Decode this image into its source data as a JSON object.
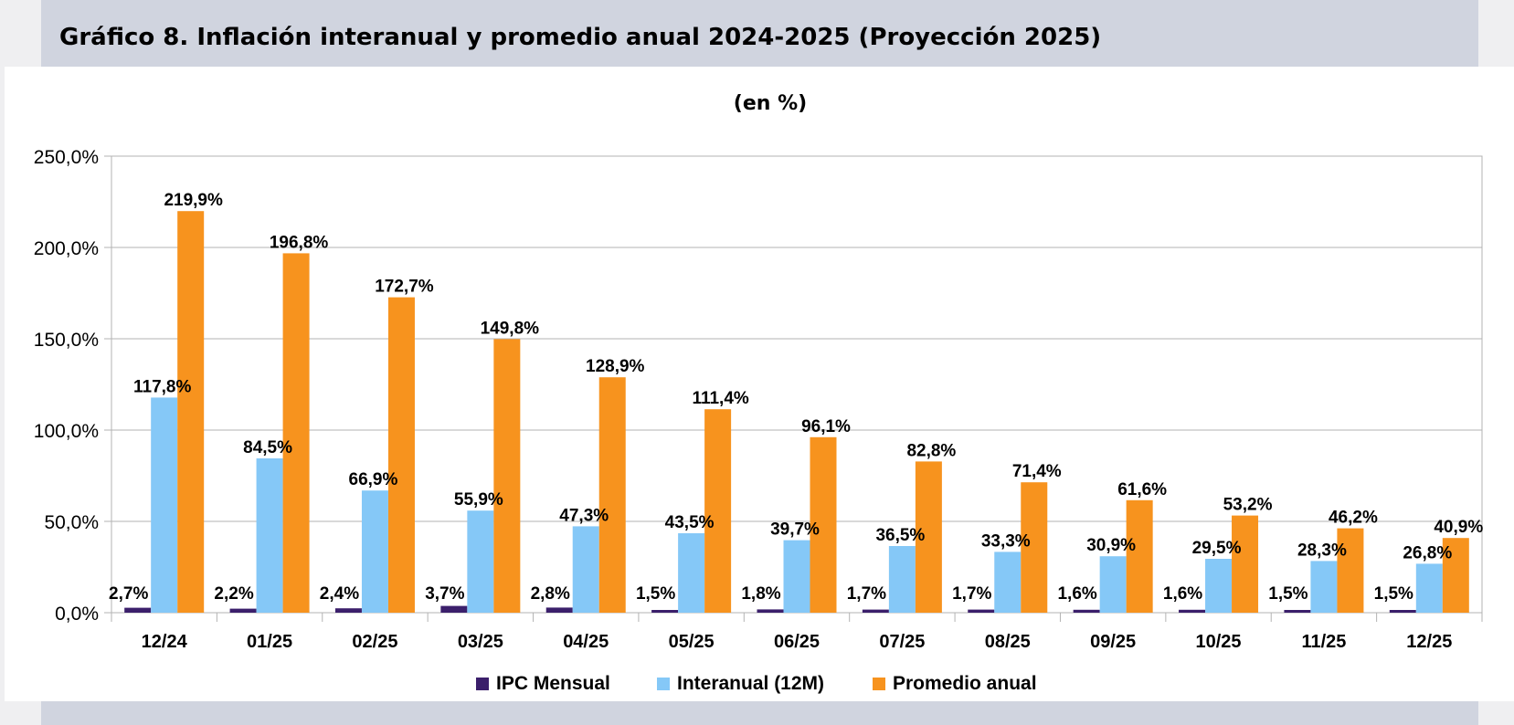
{
  "title": "Gráfico 8. Inflación interanual  y promedio anual 2024-2025 (Proyección 2025)",
  "chart_data": {
    "type": "bar",
    "subtitle": "(en %)",
    "categories": [
      "12/24",
      "01/25",
      "02/25",
      "03/25",
      "04/25",
      "05/25",
      "06/25",
      "07/25",
      "08/25",
      "09/25",
      "10/25",
      "11/25",
      "12/25"
    ],
    "series": [
      {
        "name": "IPC Mensual",
        "color": "#3b1f6b",
        "values": [
          2.7,
          2.2,
          2.4,
          3.7,
          2.8,
          1.5,
          1.8,
          1.7,
          1.7,
          1.6,
          1.6,
          1.5,
          1.5
        ],
        "labels": [
          "2,7%",
          "2,2%",
          "2,4%",
          "3,7%",
          "2,8%",
          "1,5%",
          "1,8%",
          "1,7%",
          "1,7%",
          "1,6%",
          "1,6%",
          "1,5%",
          "1,5%"
        ]
      },
      {
        "name": "Interanual (12M)",
        "color": "#85c8f7",
        "values": [
          117.8,
          84.5,
          66.9,
          55.9,
          47.3,
          43.5,
          39.7,
          36.5,
          33.3,
          30.9,
          29.5,
          28.3,
          26.8
        ],
        "labels": [
          "117,8%",
          "84,5%",
          "66,9%",
          "55,9%",
          "47,3%",
          "43,5%",
          "39,7%",
          "36,5%",
          "33,3%",
          "30,9%",
          "29,5%",
          "28,3%",
          "26,8%"
        ]
      },
      {
        "name": "Promedio anual",
        "color": "#f7931e",
        "values": [
          219.9,
          196.8,
          172.7,
          149.8,
          128.9,
          111.4,
          96.1,
          82.8,
          71.4,
          61.6,
          53.2,
          46.2,
          40.9
        ],
        "labels": [
          "219,9%",
          "196,8%",
          "172,7%",
          "149,8%",
          "128,9%",
          "111,4%",
          "96,1%",
          "82,8%",
          "71,4%",
          "61,6%",
          "53,2%",
          "46,2%",
          "40,9%"
        ]
      }
    ],
    "ylim": [
      0,
      250
    ],
    "yticks": [
      "0,0%",
      "50,0%",
      "100,0%",
      "150,0%",
      "200,0%",
      "250,0%"
    ],
    "ytick_values": [
      0,
      50,
      100,
      150,
      200,
      250
    ],
    "grid": true,
    "legend_position": "bottom"
  }
}
